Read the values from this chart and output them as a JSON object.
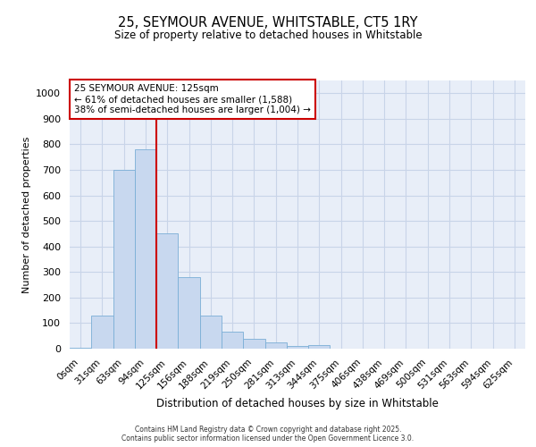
{
  "title_line1": "25, SEYMOUR AVENUE, WHITSTABLE, CT5 1RY",
  "title_line2": "Size of property relative to detached houses in Whitstable",
  "xlabel": "Distribution of detached houses by size in Whitstable",
  "ylabel": "Number of detached properties",
  "bar_labels": [
    "0sqm",
    "31sqm",
    "63sqm",
    "94sqm",
    "125sqm",
    "156sqm",
    "188sqm",
    "219sqm",
    "250sqm",
    "281sqm",
    "313sqm",
    "344sqm",
    "375sqm",
    "406sqm",
    "438sqm",
    "469sqm",
    "500sqm",
    "531sqm",
    "563sqm",
    "594sqm",
    "625sqm"
  ],
  "bar_values": [
    5,
    130,
    700,
    780,
    450,
    280,
    130,
    65,
    40,
    25,
    10,
    15,
    0,
    0,
    0,
    0,
    0,
    0,
    0,
    0,
    0
  ],
  "bar_color": "#c8d8ef",
  "bar_edge_color": "#7aaed6",
  "ylim": [
    0,
    1050
  ],
  "yticks": [
    0,
    100,
    200,
    300,
    400,
    500,
    600,
    700,
    800,
    900,
    1000
  ],
  "red_line_x": 3.5,
  "annotation_text": "25 SEYMOUR AVENUE: 125sqm\n← 61% of detached houses are smaller (1,588)\n38% of semi-detached houses are larger (1,004) →",
  "annotation_box_color": "#ffffff",
  "annotation_box_edge": "#cc0000",
  "red_line_color": "#cc0000",
  "grid_color": "#c8d4e8",
  "bg_color": "#e8eef8",
  "footer1": "Contains HM Land Registry data © Crown copyright and database right 2025.",
  "footer2": "Contains public sector information licensed under the Open Government Licence 3.0."
}
